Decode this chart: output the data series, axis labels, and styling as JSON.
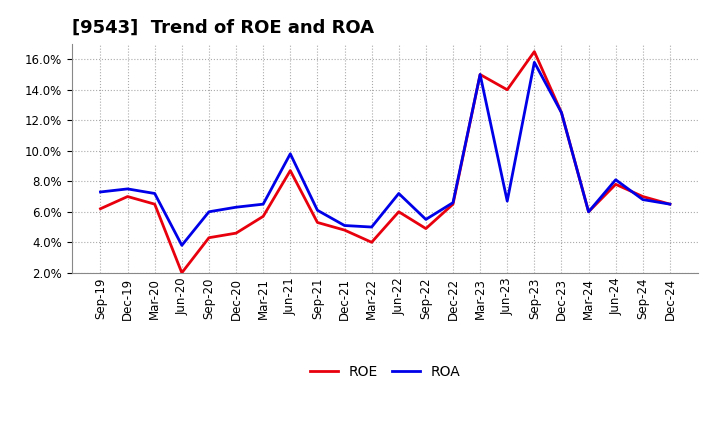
{
  "title": "[9543]  Trend of ROE and ROA",
  "x_labels": [
    "Sep-19",
    "Dec-19",
    "Mar-20",
    "Jun-20",
    "Sep-20",
    "Dec-20",
    "Mar-21",
    "Jun-21",
    "Sep-21",
    "Dec-21",
    "Mar-22",
    "Jun-22",
    "Sep-22",
    "Dec-22",
    "Mar-23",
    "Jun-23",
    "Sep-23",
    "Dec-23",
    "Mar-24",
    "Jun-24",
    "Sep-24",
    "Dec-24"
  ],
  "roe": [
    6.2,
    7.0,
    6.5,
    2.0,
    4.3,
    4.6,
    5.7,
    8.7,
    5.3,
    4.8,
    4.0,
    6.0,
    4.9,
    6.5,
    15.0,
    14.0,
    16.5,
    12.5,
    6.0,
    7.8,
    7.0,
    6.5
  ],
  "roa": [
    7.3,
    7.5,
    7.2,
    3.8,
    6.0,
    6.3,
    6.5,
    9.8,
    6.1,
    5.1,
    5.0,
    7.2,
    5.5,
    6.6,
    15.0,
    6.7,
    15.8,
    12.5,
    6.0,
    8.1,
    6.8,
    6.5
  ],
  "roe_color": "#e8000d",
  "roa_color": "#0000e8",
  "background_color": "#ffffff",
  "plot_bg_color": "#ffffff",
  "grid_color": "#aaaaaa",
  "ylim": [
    2.0,
    17.0
  ],
  "yticks": [
    2.0,
    4.0,
    6.0,
    8.0,
    10.0,
    12.0,
    14.0,
    16.0
  ],
  "line_width": 2.0,
  "title_fontsize": 13,
  "legend_fontsize": 10,
  "tick_fontsize": 8.5
}
